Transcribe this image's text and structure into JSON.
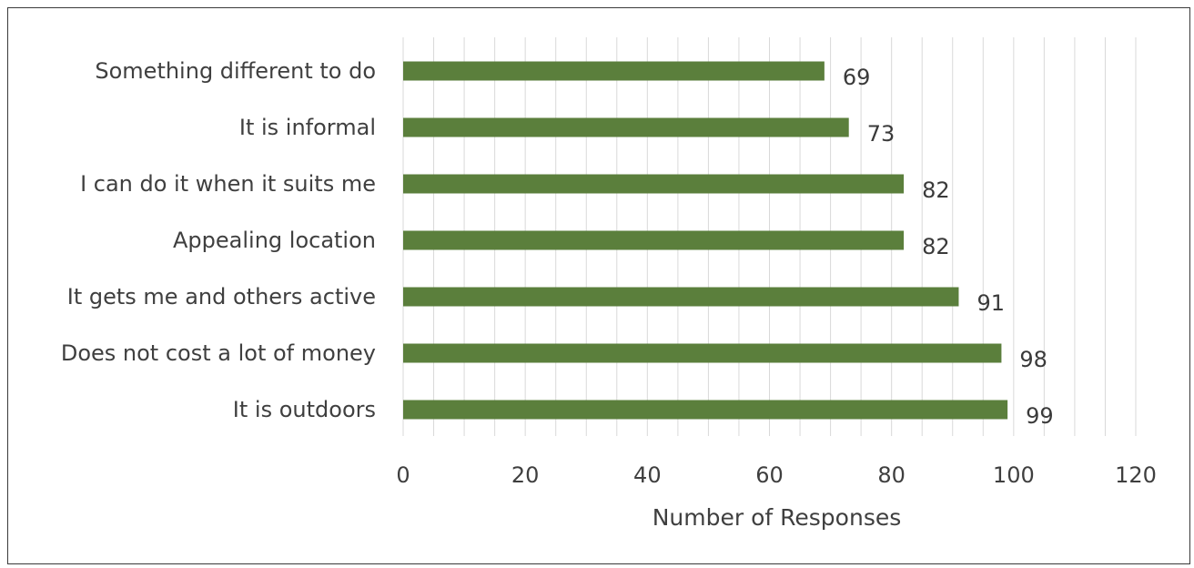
{
  "chart_data": {
    "type": "bar",
    "orientation": "horizontal",
    "categories": [
      "Something different to do",
      "It is informal",
      "I can do it when it suits me",
      "Appealing location",
      "It gets me and others active",
      "Does not cost a lot of money",
      "It is outdoors"
    ],
    "values": [
      69,
      73,
      82,
      82,
      91,
      98,
      99
    ],
    "data_labels": [
      "69",
      "73",
      "82",
      "82",
      "91",
      "98",
      "99"
    ],
    "xlabel": "Number of Responses",
    "ylabel": "",
    "xlim": [
      0,
      120
    ],
    "x_ticks": [
      0,
      20,
      40,
      60,
      80,
      100,
      120
    ],
    "x_tick_labels": [
      "0",
      "20",
      "40",
      "60",
      "80",
      "100",
      "120"
    ],
    "grid": "vertical",
    "legend": "none",
    "bar_color": "#5b7f3c",
    "grid_color": "#d9d9d9"
  }
}
